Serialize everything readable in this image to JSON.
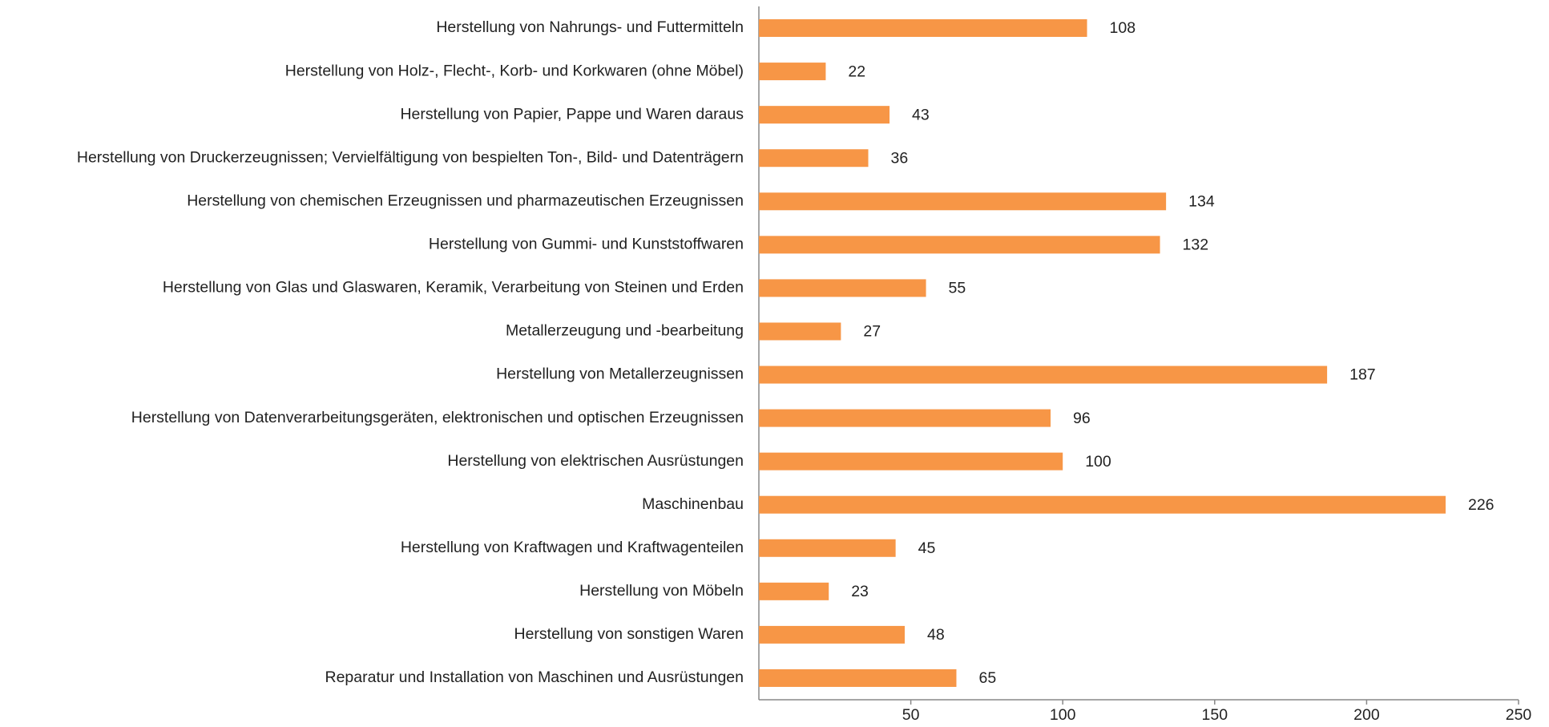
{
  "chart_data": {
    "type": "bar",
    "orientation": "horizontal",
    "categories": [
      "Herstellung von Nahrungs- und Futtermitteln",
      "Herstellung von Holz-, Flecht-, Korb- und Korkwaren (ohne Möbel)",
      "Herstellung von Papier, Pappe und Waren daraus",
      "Herstellung von Druckerzeugnissen; Vervielfältigung von bespielten Ton-, Bild- und Datenträgern",
      "Herstellung von chemischen Erzeugnissen und pharmazeutischen Erzeugnissen",
      "Herstellung von Gummi- und Kunststoffwaren",
      "Herstellung von Glas und Glaswaren, Keramik, Verarbeitung von Steinen und Erden",
      "Metallerzeugung und -bearbeitung",
      "Herstellung von Metallerzeugnissen",
      "Herstellung von Datenverarbeitungsgeräten, elektronischen und optischen Erzeugnissen",
      "Herstellung von elektrischen Ausrüstungen",
      "Maschinenbau",
      "Herstellung von Kraftwagen und Kraftwagenteilen",
      "Herstellung von Möbeln",
      "Herstellung von sonstigen Waren",
      "Reparatur und Installation von Maschinen und Ausrüstungen"
    ],
    "values": [
      108,
      22,
      43,
      36,
      134,
      132,
      55,
      27,
      187,
      96,
      100,
      226,
      45,
      23,
      48,
      65
    ],
    "color": "#f79646",
    "xlim": [
      0,
      250
    ],
    "xticks": [
      50,
      100,
      150,
      200,
      250
    ]
  }
}
